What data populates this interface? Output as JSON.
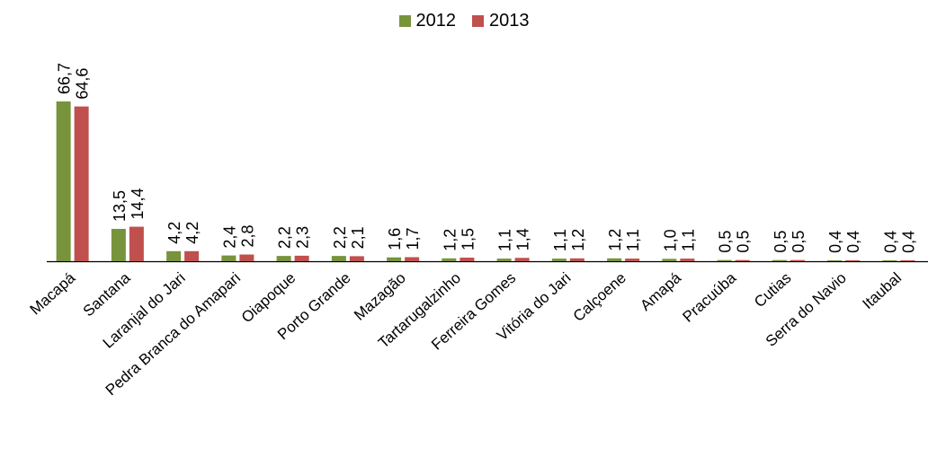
{
  "chart_data": {
    "type": "bar",
    "categories": [
      "Macapá",
      "Santana",
      "Laranjal do Jari",
      "Pedra Branca do Amapari",
      "Oiapoque",
      "Porto Grande",
      "Mazagão",
      "Tartarugalzinho",
      "Ferreira Gomes",
      "Vitória do Jari",
      "Calçoene",
      "Amapá",
      "Pracuúba",
      "Cutias",
      "Serra do Navio",
      "Itaubal"
    ],
    "series": [
      {
        "name": "2012",
        "color": "#77933c",
        "values": [
          66.7,
          13.5,
          4.2,
          2.4,
          2.2,
          2.2,
          1.6,
          1.2,
          1.1,
          1.1,
          1.2,
          1.0,
          0.5,
          0.5,
          0.4,
          0.4
        ],
        "labels": [
          "66,7",
          "13,5",
          "4,2",
          "2,4",
          "2,2",
          "2,2",
          "1,6",
          "1,2",
          "1,1",
          "1,1",
          "1,2",
          "1,0",
          "0,5",
          "0,5",
          "0,4",
          "0,4"
        ]
      },
      {
        "name": "2013",
        "color": "#c0504d",
        "values": [
          64.6,
          14.4,
          4.2,
          2.8,
          2.3,
          2.1,
          1.7,
          1.5,
          1.4,
          1.2,
          1.1,
          1.1,
          0.5,
          0.5,
          0.4,
          0.4
        ],
        "labels": [
          "64,6",
          "14,4",
          "4,2",
          "2,8",
          "2,3",
          "2,1",
          "1,7",
          "1,5",
          "1,4",
          "1,2",
          "1,1",
          "1,1",
          "0,5",
          "0,5",
          "0,4",
          "0,4"
        ]
      }
    ],
    "title": "",
    "xlabel": "",
    "ylabel": "",
    "ylim": [
      0,
      70
    ],
    "grid": false,
    "legend_position": "top"
  }
}
